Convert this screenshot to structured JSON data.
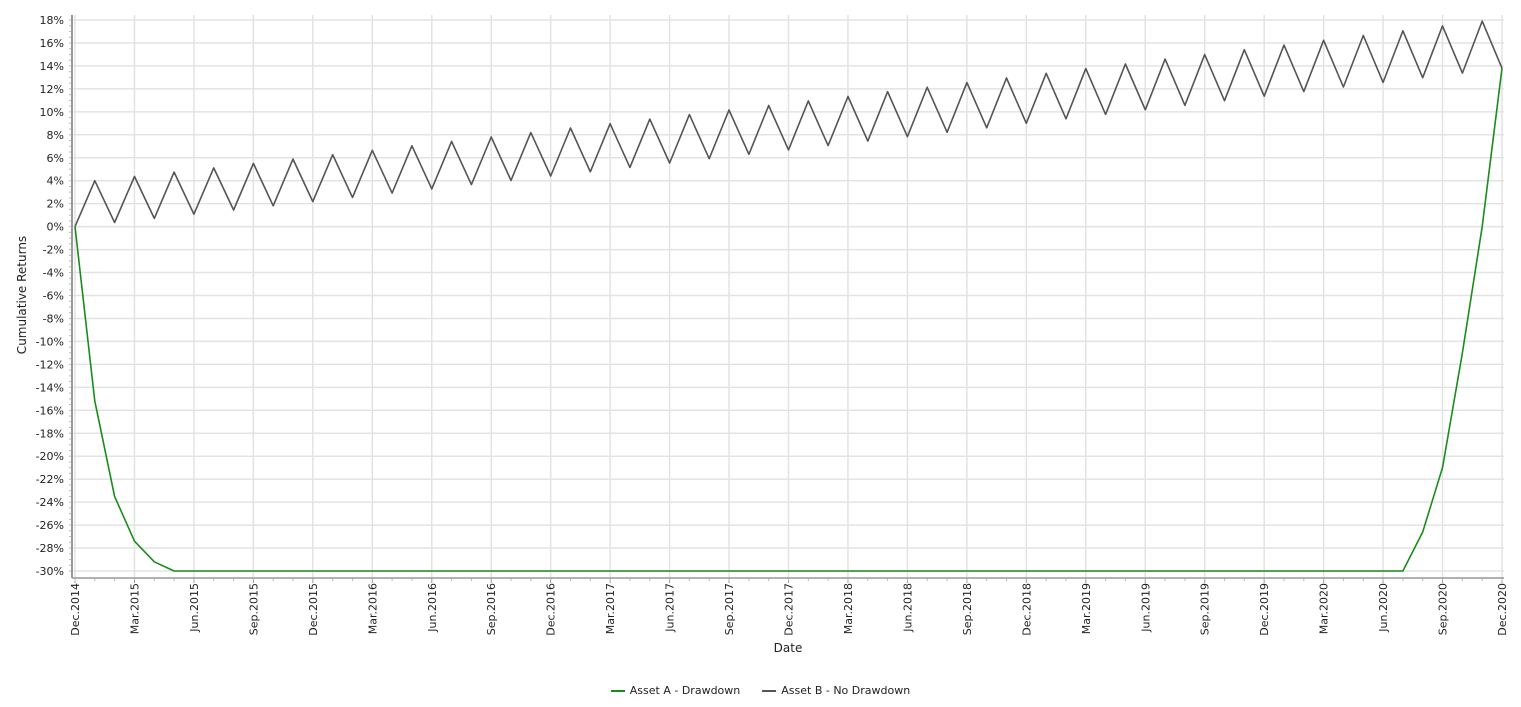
{
  "chart_data": {
    "type": "line",
    "title": "",
    "xlabel": "Date",
    "ylabel": "Cumulative Returns",
    "ylim": [
      -30,
      18
    ],
    "y_tick_step": 2,
    "y_tick_format": "percent",
    "grid": true,
    "legend_position": "bottom",
    "x_tick_labels": [
      "Dec.2014",
      "Mar.2015",
      "Jun.2015",
      "Sep.2015",
      "Dec.2015",
      "Mar.2016",
      "Jun.2016",
      "Sep.2016",
      "Dec.2016",
      "Mar.2017",
      "Jun.2017",
      "Sep.2017",
      "Dec.2017",
      "Mar.2018",
      "Jun.2018",
      "Sep.2018",
      "Dec.2018",
      "Mar.2019",
      "Jun.2019",
      "Sep.2019",
      "Dec.2019",
      "Mar.2020",
      "Jun.2020",
      "Sep.2020",
      "Dec.2020"
    ],
    "x": [
      "2014-12",
      "2015-01",
      "2015-02",
      "2015-03",
      "2015-04",
      "2015-05",
      "2015-06",
      "2015-07",
      "2015-08",
      "2015-09",
      "2015-10",
      "2015-11",
      "2015-12",
      "2016-01",
      "2016-02",
      "2016-03",
      "2016-04",
      "2016-05",
      "2016-06",
      "2016-07",
      "2016-08",
      "2016-09",
      "2016-10",
      "2016-11",
      "2016-12",
      "2017-01",
      "2017-02",
      "2017-03",
      "2017-04",
      "2017-05",
      "2017-06",
      "2017-07",
      "2017-08",
      "2017-09",
      "2017-10",
      "2017-11",
      "2017-12",
      "2018-01",
      "2018-02",
      "2018-03",
      "2018-04",
      "2018-05",
      "2018-06",
      "2018-07",
      "2018-08",
      "2018-09",
      "2018-10",
      "2018-11",
      "2018-12",
      "2019-01",
      "2019-02",
      "2019-03",
      "2019-04",
      "2019-05",
      "2019-06",
      "2019-07",
      "2019-08",
      "2019-09",
      "2019-10",
      "2019-11",
      "2019-12",
      "2020-01",
      "2020-02",
      "2020-03",
      "2020-04",
      "2020-05",
      "2020-06",
      "2020-07",
      "2020-08",
      "2020-09",
      "2020-10",
      "2020-11",
      "2020-12"
    ],
    "series": [
      {
        "name": "Asset A - Drawdown",
        "color": "#1a8c1a",
        "values": [
          0,
          -15.2,
          -23.5,
          -27.4,
          -29.2,
          -30,
          -30,
          -30,
          -30,
          -30,
          -30,
          -30,
          -30,
          -30,
          -30,
          -30,
          -30,
          -30,
          -30,
          -30,
          -30,
          -30,
          -30,
          -30,
          -30,
          -30,
          -30,
          -30,
          -30,
          -30,
          -30,
          -30,
          -30,
          -30,
          -30,
          -30,
          -30,
          -30,
          -30,
          -30,
          -30,
          -30,
          -30,
          -30,
          -30,
          -30,
          -30,
          -30,
          -30,
          -30,
          -30,
          -30,
          -30,
          -30,
          -30,
          -30,
          -30,
          -30,
          -30,
          -30,
          -30,
          -30,
          -30,
          -30,
          -30,
          -30,
          -30,
          -30,
          -26.6,
          -21.0,
          -11.0,
          0,
          13.8
        ]
      },
      {
        "name": "Asset B - No Drawdown",
        "color": "#555555",
        "values": [
          0,
          4.0,
          0.36,
          4.37,
          0.72,
          4.75,
          1.08,
          5.12,
          1.45,
          5.51,
          1.81,
          5.88,
          2.18,
          6.27,
          2.55,
          6.65,
          2.92,
          7.04,
          3.29,
          7.42,
          3.66,
          7.81,
          4.03,
          8.19,
          4.41,
          8.59,
          4.78,
          8.97,
          5.16,
          9.37,
          5.54,
          9.76,
          5.92,
          10.16,
          6.3,
          10.55,
          6.68,
          10.95,
          7.06,
          11.34,
          7.45,
          11.75,
          7.83,
          12.14,
          8.22,
          12.55,
          8.61,
          12.95,
          9.0,
          13.36,
          9.39,
          13.77,
          9.78,
          14.17,
          10.18,
          14.59,
          10.57,
          14.99,
          10.97,
          15.41,
          11.36,
          15.81,
          11.76,
          16.23,
          12.16,
          16.65,
          12.56,
          17.06,
          12.97,
          17.49,
          13.37,
          17.9,
          13.8
        ]
      }
    ]
  }
}
